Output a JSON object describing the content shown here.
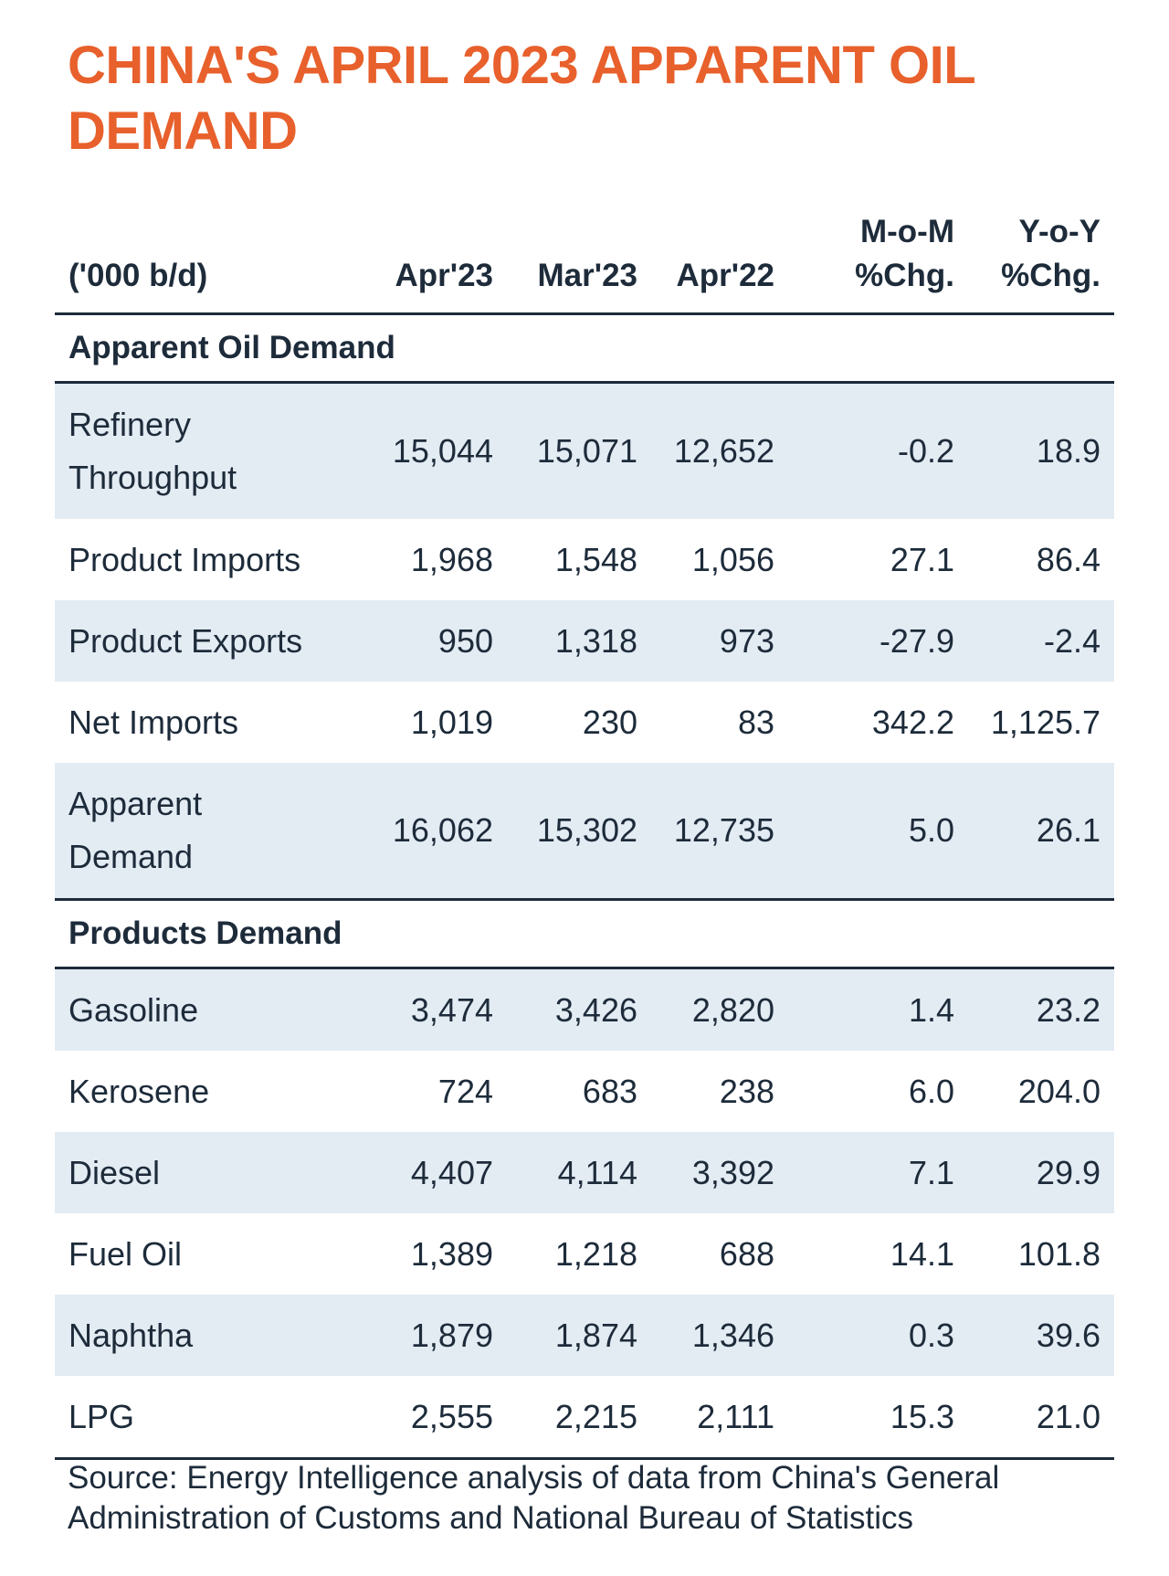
{
  "title": "CHINA'S APRIL 2023 APPARENT OIL DEMAND",
  "source": "Source: Energy Intelligence analysis of data from China's General Administration of Customs and National Bureau of Statistics",
  "chart_data": {
    "type": "table",
    "title": "CHINA'S APRIL 2023 APPARENT OIL DEMAND",
    "unit_header": "('000 b/d)",
    "columns": [
      {
        "label": "Apr'23"
      },
      {
        "label": "Mar'23"
      },
      {
        "label": "Apr'22"
      },
      {
        "line1": "M-o-M",
        "line2": "%Chg."
      },
      {
        "line1": "Y-o-Y",
        "line2": "%Chg."
      }
    ],
    "sections": [
      {
        "name": "Apparent Oil Demand",
        "rows": [
          {
            "label_lines": [
              "Refinery",
              "Throughput"
            ],
            "values": [
              "15,044",
              "15,071",
              "12,652",
              "-0.2",
              "18.9"
            ]
          },
          {
            "label_lines": [
              "Product Imports"
            ],
            "values": [
              "1,968",
              "1,548",
              "1,056",
              "27.1",
              "86.4"
            ]
          },
          {
            "label_lines": [
              "Product Exports"
            ],
            "values": [
              "950",
              "1,318",
              "973",
              "-27.9",
              "-2.4"
            ]
          },
          {
            "label_lines": [
              "Net Imports"
            ],
            "values": [
              "1,019",
              "230",
              "83",
              "342.2",
              "1,125.7"
            ]
          },
          {
            "label_lines": [
              "Apparent",
              "Demand"
            ],
            "values": [
              "16,062",
              "15,302",
              "12,735",
              "5.0",
              "26.1"
            ]
          }
        ]
      },
      {
        "name": "Products Demand",
        "rows": [
          {
            "label_lines": [
              "Gasoline"
            ],
            "values": [
              "3,474",
              "3,426",
              "2,820",
              "1.4",
              "23.2"
            ]
          },
          {
            "label_lines": [
              "Kerosene"
            ],
            "values": [
              "724",
              "683",
              "238",
              "6.0",
              "204.0"
            ]
          },
          {
            "label_lines": [
              "Diesel"
            ],
            "values": [
              "4,407",
              "4,114",
              "3,392",
              "7.1",
              "29.9"
            ]
          },
          {
            "label_lines": [
              "Fuel Oil"
            ],
            "values": [
              "1,389",
              "1,218",
              "688",
              "14.1",
              "101.8"
            ]
          },
          {
            "label_lines": [
              "Naphtha"
            ],
            "values": [
              "1,879",
              "1,874",
              "1,346",
              "0.3",
              "39.6"
            ]
          },
          {
            "label_lines": [
              "LPG"
            ],
            "values": [
              "2,555",
              "2,215",
              "2,111",
              "15.3",
              "21.0"
            ]
          }
        ]
      }
    ]
  },
  "colors": {
    "title": "#e8602c",
    "text": "#1d2b3a",
    "row_shade": "#e3ebf3",
    "rule": "#1d2b3a"
  }
}
